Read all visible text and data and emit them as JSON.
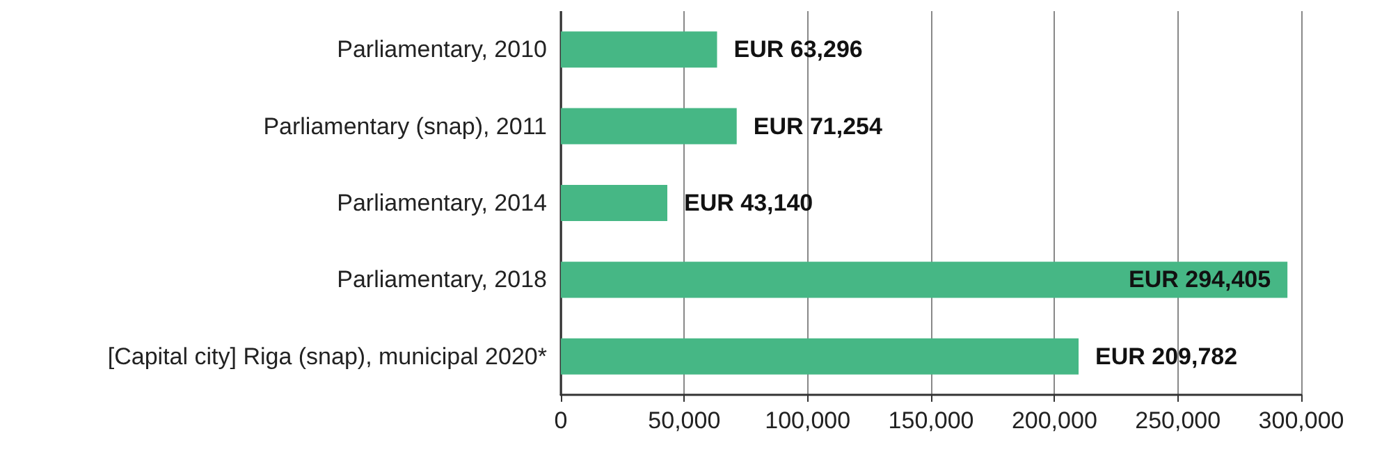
{
  "chart_data": {
    "type": "bar",
    "orientation": "horizontal",
    "categories": [
      "Parliamentary, 2010",
      "Parliamentary (snap), 2011",
      "Parliamentary, 2014",
      "Parliamentary, 2018",
      "[Capital city] Riga (snap), municipal 2020*"
    ],
    "values": [
      63296,
      71254,
      43140,
      294405,
      209782
    ],
    "value_labels": [
      "EUR 63,296",
      "EUR 71,254",
      "EUR 43,140",
      "EUR 294,405",
      "EUR 209,782"
    ],
    "color": "#46b785",
    "xlim": [
      0,
      300000
    ],
    "xticks": [
      0,
      {
        "value": 50000,
        "label": "50,000"
      },
      {
        "value": 100000,
        "label": "100,000"
      },
      {
        "value": 150000,
        "label": "150,000"
      },
      {
        "value": 200000,
        "label": "200,000"
      },
      {
        "value": 250000,
        "label": "250,000"
      },
      {
        "value": 300000,
        "label": "300,000"
      }
    ],
    "grid": "x"
  }
}
